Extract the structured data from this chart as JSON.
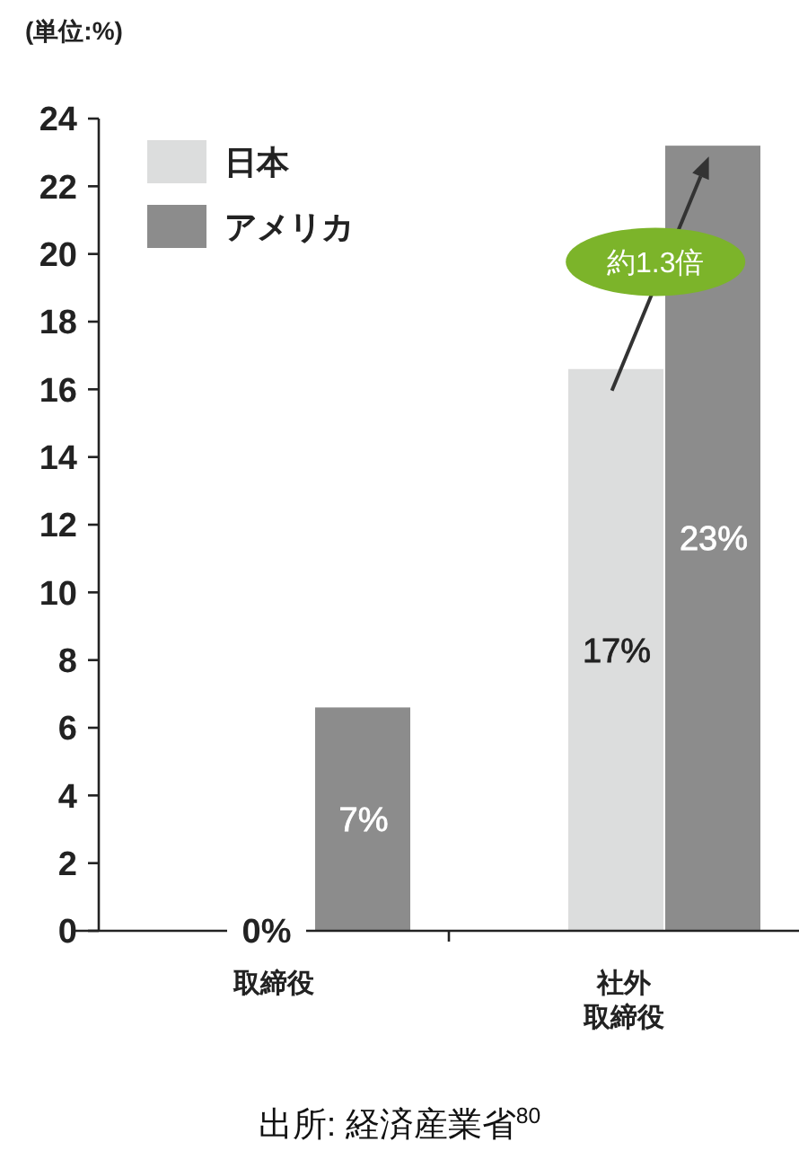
{
  "chart_data": {
    "type": "bar",
    "ylabel": "(単位:%)",
    "categories": [
      "取締役",
      "社外取締役"
    ],
    "series": [
      {
        "name": "日本",
        "color": "#dcdddd",
        "values": [
          0,
          16.6
        ],
        "value_labels": [
          "0%",
          "17%"
        ]
      },
      {
        "name": "アメリカ",
        "color": "#8c8c8c",
        "values": [
          6.6,
          23.2
        ],
        "value_labels": [
          "7%",
          "23%"
        ]
      }
    ],
    "ylim": [
      0,
      24
    ],
    "yticks": [
      0,
      2,
      4,
      6,
      8,
      10,
      12,
      14,
      16,
      18,
      20,
      22,
      24
    ],
    "grid": false,
    "legend": "top left",
    "annotations": [
      "約1.3倍",
      "出所: 経済産業省$^{80}$"
    ]
  }
}
